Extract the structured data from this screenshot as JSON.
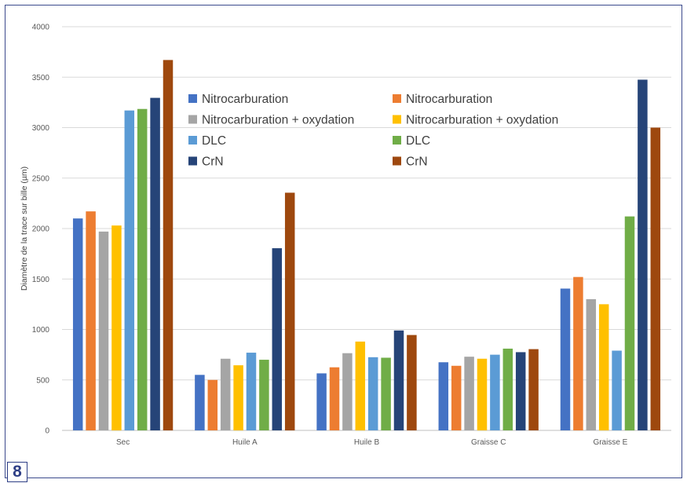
{
  "figure_number": "8",
  "chart_data": {
    "type": "bar",
    "title": "",
    "xlabel": "",
    "ylabel": "Diamètre de la trace sur bille (µm)",
    "ylim": [
      0,
      4000
    ],
    "yticks": [
      0,
      500,
      1000,
      1500,
      2000,
      2500,
      3000,
      3500,
      4000
    ],
    "grid": true,
    "legend_position": "top-center",
    "categories": [
      "Sec",
      "Huile A",
      "Huile B",
      "Graisse C",
      "Graisse E"
    ],
    "series": [
      {
        "name": "Nitrocarburation",
        "color": "#4472c4",
        "values": [
          2100,
          550,
          565,
          675,
          1405
        ]
      },
      {
        "name": "Nitrocarburation",
        "color": "#ed7d31",
        "values": [
          2170,
          500,
          625,
          640,
          1520
        ]
      },
      {
        "name": "Nitrocarburation + oxydation",
        "color": "#a5a5a5",
        "values": [
          1970,
          710,
          765,
          730,
          1300
        ]
      },
      {
        "name": "Nitrocarburation + oxydation",
        "color": "#ffc000",
        "values": [
          2030,
          645,
          880,
          710,
          1250
        ]
      },
      {
        "name": "DLC",
        "color": "#5b9bd5",
        "values": [
          3170,
          770,
          725,
          750,
          790
        ]
      },
      {
        "name": "DLC",
        "color": "#70ad47",
        "values": [
          3185,
          700,
          720,
          810,
          2120
        ]
      },
      {
        "name": "CrN",
        "color": "#264478",
        "values": [
          3295,
          1805,
          990,
          775,
          3475
        ]
      },
      {
        "name": "CrN",
        "color": "#9e480e",
        "values": [
          3670,
          2355,
          945,
          805,
          3000
        ]
      }
    ]
  }
}
